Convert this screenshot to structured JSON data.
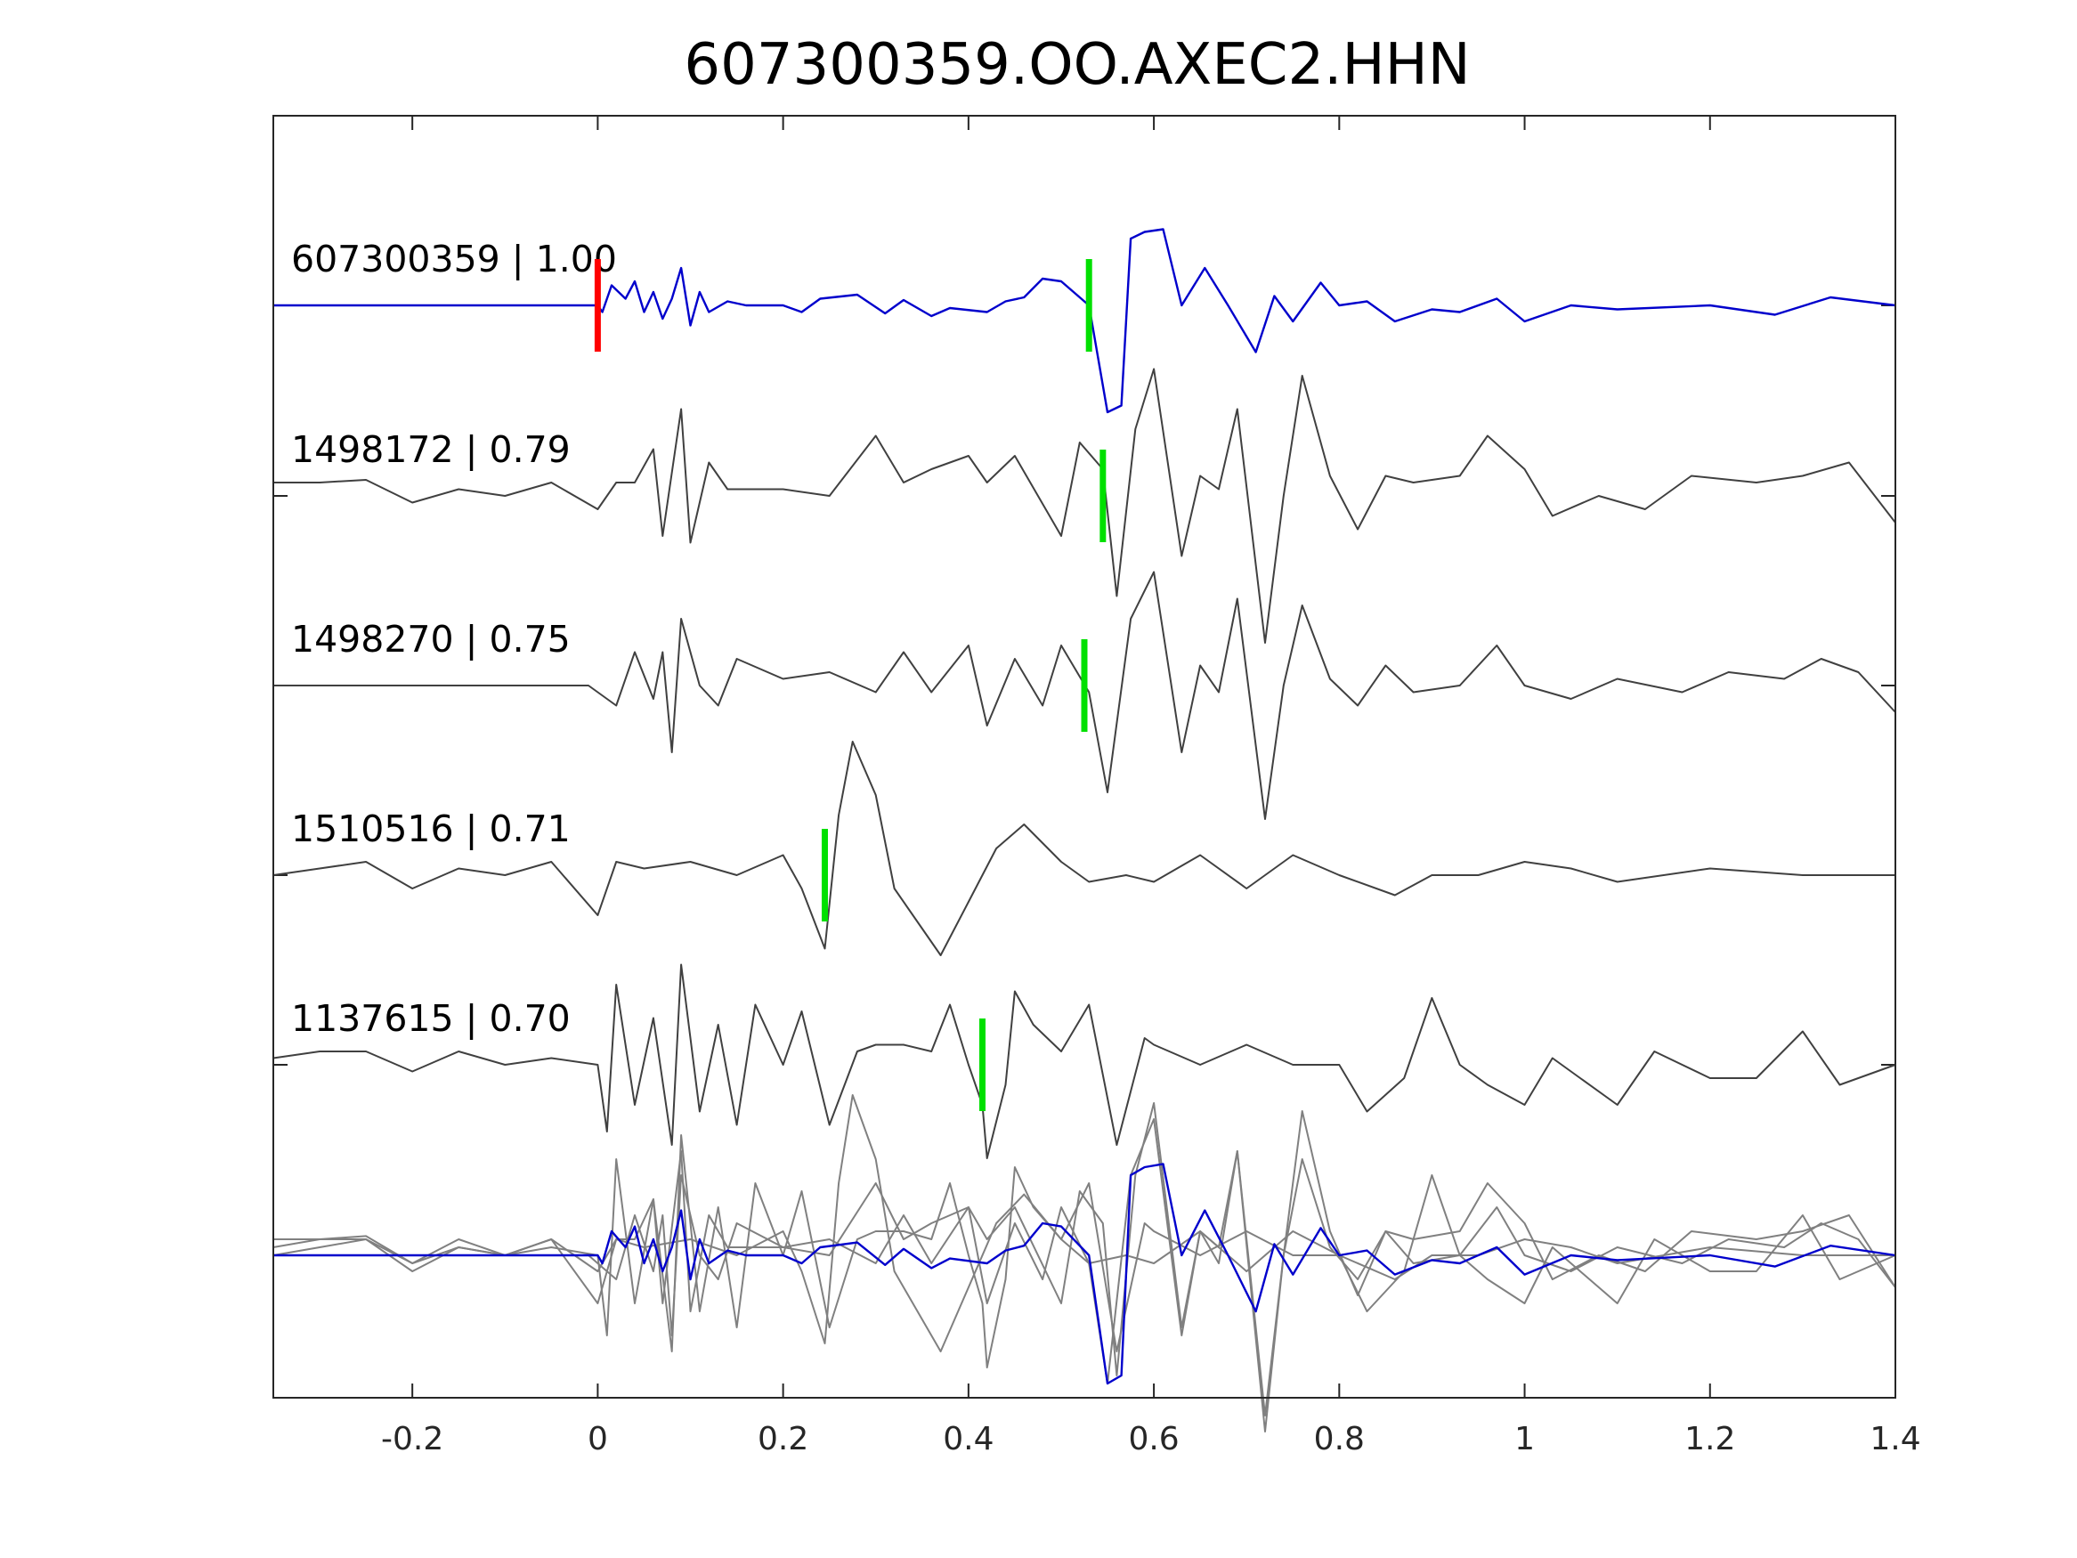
{
  "chart_data": {
    "type": "line",
    "title": "607300359.OO.AXEC2.HHN",
    "xlabel": "",
    "ylabel": "",
    "xlim": [
      -0.35,
      1.4
    ],
    "xticks": [
      -0.2,
      0,
      0.2,
      0.4,
      0.6,
      0.8,
      1,
      1.2,
      1.4
    ],
    "xtick_labels": [
      "-0.2",
      "0",
      "0.2",
      "0.4",
      "0.6",
      "0.8",
      "1",
      "1.2",
      "1.4"
    ],
    "grid": false,
    "reference_pick_color": "#ff0000",
    "pick_color": "#00e000",
    "overlay_panel": true,
    "series": [
      {
        "label": "607300359 | 1.00",
        "color": "#0000cc",
        "pick": 0.53,
        "ref_pick": 0.0,
        "wave": [
          [
            -0.35,
            0
          ],
          [
            0,
            0
          ],
          [
            0.005,
            -0.05
          ],
          [
            0.015,
            0.15
          ],
          [
            0.03,
            0.05
          ],
          [
            0.04,
            0.18
          ],
          [
            0.05,
            -0.05
          ],
          [
            0.06,
            0.1
          ],
          [
            0.07,
            -0.1
          ],
          [
            0.08,
            0.05
          ],
          [
            0.09,
            0.28
          ],
          [
            0.1,
            -0.15
          ],
          [
            0.11,
            0.1
          ],
          [
            0.12,
            -0.05
          ],
          [
            0.14,
            0.03
          ],
          [
            0.16,
            0.0
          ],
          [
            0.2,
            0.0
          ],
          [
            0.22,
            -0.05
          ],
          [
            0.24,
            0.05
          ],
          [
            0.28,
            0.08
          ],
          [
            0.31,
            -0.06
          ],
          [
            0.33,
            0.04
          ],
          [
            0.36,
            -0.08
          ],
          [
            0.38,
            -0.02
          ],
          [
            0.42,
            -0.05
          ],
          [
            0.44,
            0.03
          ],
          [
            0.46,
            0.06
          ],
          [
            0.48,
            0.2
          ],
          [
            0.5,
            0.18
          ],
          [
            0.53,
            0.0
          ],
          [
            0.55,
            -0.8
          ],
          [
            0.565,
            -0.75
          ],
          [
            0.575,
            0.5
          ],
          [
            0.59,
            0.55
          ],
          [
            0.61,
            0.57
          ],
          [
            0.63,
            0.0
          ],
          [
            0.655,
            0.28
          ],
          [
            0.68,
            0.0
          ],
          [
            0.71,
            -0.35
          ],
          [
            0.73,
            0.07
          ],
          [
            0.75,
            -0.12
          ],
          [
            0.78,
            0.17
          ],
          [
            0.8,
            0.0
          ],
          [
            0.83,
            0.03
          ],
          [
            0.86,
            -0.12
          ],
          [
            0.9,
            -0.03
          ],
          [
            0.93,
            -0.05
          ],
          [
            0.97,
            0.05
          ],
          [
            1.0,
            -0.12
          ],
          [
            1.05,
            0.0
          ],
          [
            1.1,
            -0.03
          ],
          [
            1.2,
            0.0
          ],
          [
            1.27,
            -0.07
          ],
          [
            1.33,
            0.06
          ],
          [
            1.4,
            0.0
          ]
        ]
      },
      {
        "label": "1498172 | 0.79",
        "color": "#404040",
        "pick": 0.545,
        "wave": [
          [
            -0.35,
            0.1
          ],
          [
            -0.3,
            0.1
          ],
          [
            -0.25,
            0.12
          ],
          [
            -0.2,
            -0.05
          ],
          [
            -0.15,
            0.05
          ],
          [
            -0.1,
            0.0
          ],
          [
            -0.05,
            0.1
          ],
          [
            0.0,
            -0.1
          ],
          [
            0.02,
            0.1
          ],
          [
            0.04,
            0.1
          ],
          [
            0.06,
            0.35
          ],
          [
            0.07,
            -0.3
          ],
          [
            0.09,
            0.65
          ],
          [
            0.1,
            -0.35
          ],
          [
            0.12,
            0.25
          ],
          [
            0.14,
            0.05
          ],
          [
            0.2,
            0.05
          ],
          [
            0.25,
            0.0
          ],
          [
            0.3,
            0.45
          ],
          [
            0.33,
            0.1
          ],
          [
            0.36,
            0.2
          ],
          [
            0.4,
            0.3
          ],
          [
            0.42,
            0.1
          ],
          [
            0.45,
            0.3
          ],
          [
            0.5,
            -0.3
          ],
          [
            0.52,
            0.4
          ],
          [
            0.545,
            0.2
          ],
          [
            0.56,
            -0.75
          ],
          [
            0.58,
            0.5
          ],
          [
            0.6,
            0.95
          ],
          [
            0.63,
            -0.45
          ],
          [
            0.65,
            0.15
          ],
          [
            0.67,
            0.05
          ],
          [
            0.69,
            0.65
          ],
          [
            0.72,
            -1.1
          ],
          [
            0.74,
            0.0
          ],
          [
            0.76,
            0.9
          ],
          [
            0.79,
            0.15
          ],
          [
            0.82,
            -0.25
          ],
          [
            0.85,
            0.15
          ],
          [
            0.88,
            0.1
          ],
          [
            0.93,
            0.15
          ],
          [
            0.96,
            0.45
          ],
          [
            1.0,
            0.2
          ],
          [
            1.03,
            -0.15
          ],
          [
            1.08,
            0.0
          ],
          [
            1.13,
            -0.1
          ],
          [
            1.18,
            0.15
          ],
          [
            1.25,
            0.1
          ],
          [
            1.3,
            0.15
          ],
          [
            1.35,
            0.25
          ],
          [
            1.4,
            -0.2
          ]
        ]
      },
      {
        "label": "1498270 | 0.75",
        "color": "#404040",
        "pick": 0.525,
        "wave": [
          [
            -0.35,
            0
          ],
          [
            -0.1,
            0
          ],
          [
            -0.01,
            0.0
          ],
          [
            0.02,
            -0.15
          ],
          [
            0.04,
            0.25
          ],
          [
            0.06,
            -0.1
          ],
          [
            0.07,
            0.25
          ],
          [
            0.08,
            -0.5
          ],
          [
            0.09,
            0.5
          ],
          [
            0.11,
            0.0
          ],
          [
            0.13,
            -0.15
          ],
          [
            0.15,
            0.2
          ],
          [
            0.2,
            0.05
          ],
          [
            0.25,
            0.1
          ],
          [
            0.3,
            -0.05
          ],
          [
            0.33,
            0.25
          ],
          [
            0.36,
            -0.05
          ],
          [
            0.4,
            0.3
          ],
          [
            0.42,
            -0.3
          ],
          [
            0.45,
            0.2
          ],
          [
            0.48,
            -0.15
          ],
          [
            0.5,
            0.3
          ],
          [
            0.53,
            -0.05
          ],
          [
            0.55,
            -0.8
          ],
          [
            0.575,
            0.5
          ],
          [
            0.6,
            0.85
          ],
          [
            0.63,
            -0.5
          ],
          [
            0.65,
            0.15
          ],
          [
            0.67,
            -0.05
          ],
          [
            0.69,
            0.65
          ],
          [
            0.72,
            -1.0
          ],
          [
            0.74,
            0.0
          ],
          [
            0.76,
            0.6
          ],
          [
            0.79,
            0.05
          ],
          [
            0.82,
            -0.15
          ],
          [
            0.85,
            0.15
          ],
          [
            0.88,
            -0.05
          ],
          [
            0.93,
            0.0
          ],
          [
            0.97,
            0.3
          ],
          [
            1.0,
            0.0
          ],
          [
            1.05,
            -0.1
          ],
          [
            1.1,
            0.05
          ],
          [
            1.17,
            -0.05
          ],
          [
            1.22,
            0.1
          ],
          [
            1.28,
            0.05
          ],
          [
            1.32,
            0.2
          ],
          [
            1.36,
            0.1
          ],
          [
            1.4,
            -0.2
          ]
        ]
      },
      {
        "label": "1510516 | 0.71",
        "color": "#404040",
        "pick": 0.245,
        "wave": [
          [
            -0.35,
            0.0
          ],
          [
            -0.3,
            0.05
          ],
          [
            -0.25,
            0.1
          ],
          [
            -0.2,
            -0.1
          ],
          [
            -0.15,
            0.05
          ],
          [
            -0.1,
            0.0
          ],
          [
            -0.05,
            0.1
          ],
          [
            0.0,
            -0.3
          ],
          [
            0.02,
            0.1
          ],
          [
            0.05,
            0.05
          ],
          [
            0.1,
            0.1
          ],
          [
            0.15,
            0.0
          ],
          [
            0.2,
            0.15
          ],
          [
            0.22,
            -0.1
          ],
          [
            0.245,
            -0.55
          ],
          [
            0.26,
            0.45
          ],
          [
            0.275,
            1.0
          ],
          [
            0.3,
            0.6
          ],
          [
            0.32,
            -0.1
          ],
          [
            0.35,
            -0.4
          ],
          [
            0.37,
            -0.6
          ],
          [
            0.4,
            -0.2
          ],
          [
            0.43,
            0.2
          ],
          [
            0.46,
            0.38
          ],
          [
            0.5,
            0.1
          ],
          [
            0.53,
            -0.05
          ],
          [
            0.57,
            0.0
          ],
          [
            0.6,
            -0.05
          ],
          [
            0.65,
            0.15
          ],
          [
            0.7,
            -0.1
          ],
          [
            0.75,
            0.15
          ],
          [
            0.8,
            0.0
          ],
          [
            0.86,
            -0.15
          ],
          [
            0.9,
            0.0
          ],
          [
            0.95,
            0.0
          ],
          [
            1.0,
            0.1
          ],
          [
            1.05,
            0.05
          ],
          [
            1.1,
            -0.05
          ],
          [
            1.2,
            0.05
          ],
          [
            1.3,
            0.0
          ],
          [
            1.4,
            0.0
          ]
        ]
      },
      {
        "label": "1137615 | 0.70",
        "color": "#404040",
        "pick": 0.415,
        "wave": [
          [
            -0.35,
            0.05
          ],
          [
            -0.3,
            0.1
          ],
          [
            -0.25,
            0.1
          ],
          [
            -0.2,
            -0.05
          ],
          [
            -0.15,
            0.1
          ],
          [
            -0.1,
            0.0
          ],
          [
            -0.05,
            0.05
          ],
          [
            0.0,
            0.0
          ],
          [
            0.01,
            -0.5
          ],
          [
            0.02,
            0.6
          ],
          [
            0.04,
            -0.3
          ],
          [
            0.06,
            0.35
          ],
          [
            0.08,
            -0.6
          ],
          [
            0.09,
            0.75
          ],
          [
            0.11,
            -0.35
          ],
          [
            0.13,
            0.3
          ],
          [
            0.15,
            -0.45
          ],
          [
            0.17,
            0.45
          ],
          [
            0.2,
            0.0
          ],
          [
            0.22,
            0.4
          ],
          [
            0.25,
            -0.45
          ],
          [
            0.28,
            0.1
          ],
          [
            0.3,
            0.15
          ],
          [
            0.33,
            0.15
          ],
          [
            0.36,
            0.1
          ],
          [
            0.38,
            0.45
          ],
          [
            0.4,
            0.0
          ],
          [
            0.415,
            -0.3
          ],
          [
            0.42,
            -0.7
          ],
          [
            0.44,
            -0.15
          ],
          [
            0.45,
            0.55
          ],
          [
            0.47,
            0.3
          ],
          [
            0.5,
            0.1
          ],
          [
            0.53,
            0.45
          ],
          [
            0.56,
            -0.6
          ],
          [
            0.59,
            0.2
          ],
          [
            0.6,
            0.15
          ],
          [
            0.65,
            0.0
          ],
          [
            0.7,
            0.15
          ],
          [
            0.75,
            0.0
          ],
          [
            0.8,
            0.0
          ],
          [
            0.83,
            -0.35
          ],
          [
            0.87,
            -0.1
          ],
          [
            0.9,
            0.5
          ],
          [
            0.93,
            0.0
          ],
          [
            0.96,
            -0.15
          ],
          [
            1.0,
            -0.3
          ],
          [
            1.03,
            0.05
          ],
          [
            1.06,
            -0.1
          ],
          [
            1.1,
            -0.3
          ],
          [
            1.14,
            0.1
          ],
          [
            1.2,
            -0.1
          ],
          [
            1.25,
            -0.1
          ],
          [
            1.3,
            0.25
          ],
          [
            1.34,
            -0.15
          ],
          [
            1.4,
            0.0
          ]
        ]
      }
    ]
  }
}
